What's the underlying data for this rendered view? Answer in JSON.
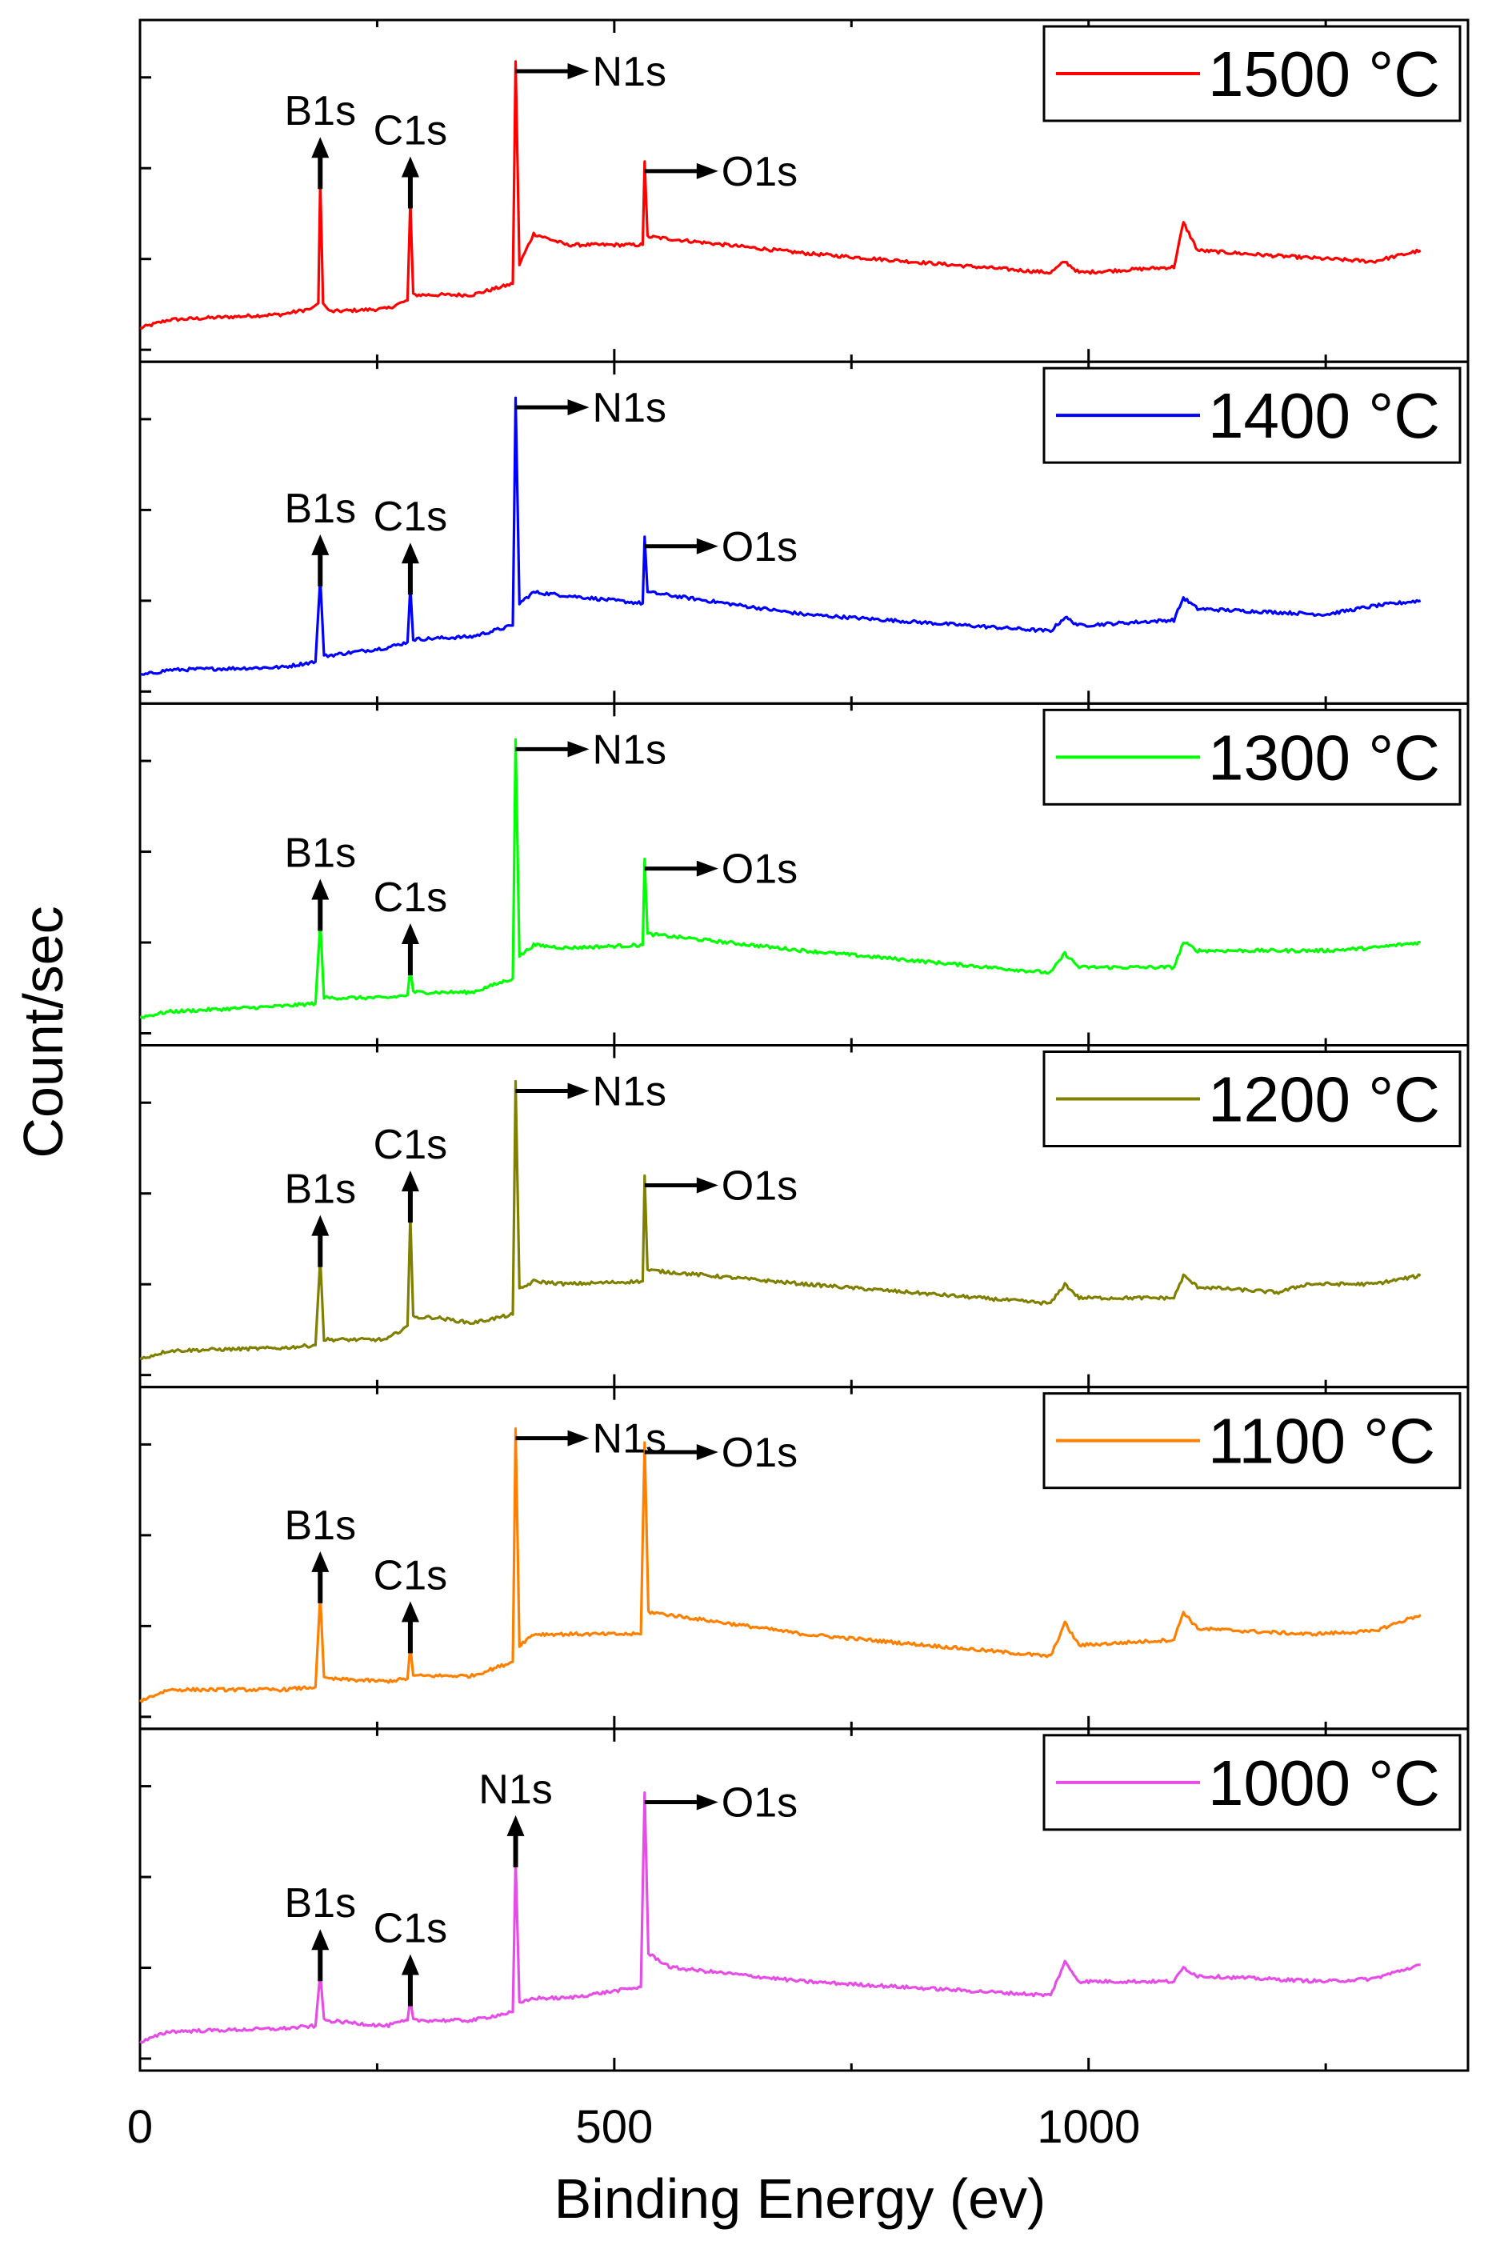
{
  "chart_data": {
    "type": "line",
    "layout": "stacked-panels",
    "xlabel": "Binding Energy (ev)",
    "ylabel": "Count/sec",
    "xlim": [
      0,
      1400
    ],
    "xticks": [
      0,
      500,
      1000
    ],
    "xtick_labels": [
      "0",
      "500",
      "1000"
    ],
    "y_tick_labels_shown": false,
    "legend_position": "top-right",
    "grid": false,
    "peak_labels": [
      "B1s",
      "C1s",
      "N1s",
      "O1s"
    ],
    "panels": [
      {
        "name": "1500 °C",
        "color": "#ff0000",
        "points": [
          [
            0,
            0.02
          ],
          [
            30,
            0.05
          ],
          [
            150,
            0.07
          ],
          [
            180,
            0.09
          ],
          [
            188,
            0.11
          ],
          [
            190,
            0.55
          ],
          [
            193,
            0.11
          ],
          [
            200,
            0.08
          ],
          [
            260,
            0.09
          ],
          [
            282,
            0.12
          ],
          [
            285,
            0.48
          ],
          [
            288,
            0.14
          ],
          [
            350,
            0.14
          ],
          [
            393,
            0.18
          ],
          [
            396,
            0.98
          ],
          [
            400,
            0.25
          ],
          [
            415,
            0.36
          ],
          [
            450,
            0.32
          ],
          [
            530,
            0.32
          ],
          [
            532,
            0.62
          ],
          [
            535,
            0.35
          ],
          [
            700,
            0.29
          ],
          [
            960,
            0.22
          ],
          [
            975,
            0.26
          ],
          [
            990,
            0.22
          ],
          [
            1090,
            0.24
          ],
          [
            1100,
            0.4
          ],
          [
            1115,
            0.3
          ],
          [
            1200,
            0.28
          ],
          [
            1300,
            0.26
          ],
          [
            1350,
            0.3
          ]
        ],
        "peaks": [
          {
            "label": "B1s",
            "x": 190
          },
          {
            "label": "C1s",
            "x": 285
          },
          {
            "label": "N1s",
            "x": 396
          },
          {
            "label": "O1s",
            "x": 532
          }
        ]
      },
      {
        "name": "1400 °C",
        "color": "#0000ff",
        "points": [
          [
            0,
            0.0
          ],
          [
            30,
            0.02
          ],
          [
            150,
            0.03
          ],
          [
            185,
            0.05
          ],
          [
            190,
            0.35
          ],
          [
            194,
            0.07
          ],
          [
            260,
            0.1
          ],
          [
            282,
            0.12
          ],
          [
            285,
            0.32
          ],
          [
            288,
            0.13
          ],
          [
            350,
            0.14
          ],
          [
            393,
            0.18
          ],
          [
            396,
            1.0
          ],
          [
            400,
            0.26
          ],
          [
            415,
            0.3
          ],
          [
            500,
            0.27
          ],
          [
            530,
            0.26
          ],
          [
            532,
            0.5
          ],
          [
            535,
            0.3
          ],
          [
            700,
            0.22
          ],
          [
            960,
            0.16
          ],
          [
            975,
            0.21
          ],
          [
            990,
            0.18
          ],
          [
            1090,
            0.2
          ],
          [
            1100,
            0.28
          ],
          [
            1115,
            0.24
          ],
          [
            1250,
            0.22
          ],
          [
            1300,
            0.25
          ],
          [
            1350,
            0.27
          ]
        ],
        "peaks": [
          {
            "label": "B1s",
            "x": 190
          },
          {
            "label": "C1s",
            "x": 285
          },
          {
            "label": "N1s",
            "x": 396
          },
          {
            "label": "O1s",
            "x": 532
          }
        ]
      },
      {
        "name": "1300 °C",
        "color": "#00ff00",
        "points": [
          [
            0,
            0.0
          ],
          [
            30,
            0.02
          ],
          [
            150,
            0.04
          ],
          [
            185,
            0.05
          ],
          [
            190,
            0.34
          ],
          [
            194,
            0.07
          ],
          [
            260,
            0.07
          ],
          [
            282,
            0.08
          ],
          [
            285,
            0.18
          ],
          [
            288,
            0.09
          ],
          [
            350,
            0.09
          ],
          [
            393,
            0.14
          ],
          [
            396,
            1.0
          ],
          [
            400,
            0.22
          ],
          [
            415,
            0.26
          ],
          [
            450,
            0.25
          ],
          [
            530,
            0.26
          ],
          [
            532,
            0.57
          ],
          [
            535,
            0.3
          ],
          [
            700,
            0.24
          ],
          [
            960,
            0.16
          ],
          [
            975,
            0.23
          ],
          [
            990,
            0.18
          ],
          [
            1090,
            0.18
          ],
          [
            1100,
            0.27
          ],
          [
            1115,
            0.24
          ],
          [
            1250,
            0.24
          ],
          [
            1300,
            0.25
          ],
          [
            1350,
            0.27
          ]
        ],
        "peaks": [
          {
            "label": "B1s",
            "x": 190
          },
          {
            "label": "C1s",
            "x": 285
          },
          {
            "label": "N1s",
            "x": 396
          },
          {
            "label": "O1s",
            "x": 532
          }
        ]
      },
      {
        "name": "1200 °C",
        "color": "#808000",
        "points": [
          [
            0,
            0.0
          ],
          [
            30,
            0.03
          ],
          [
            150,
            0.04
          ],
          [
            185,
            0.05
          ],
          [
            190,
            0.36
          ],
          [
            194,
            0.07
          ],
          [
            260,
            0.07
          ],
          [
            282,
            0.12
          ],
          [
            285,
            0.52
          ],
          [
            288,
            0.15
          ],
          [
            310,
            0.15
          ],
          [
            350,
            0.13
          ],
          [
            393,
            0.16
          ],
          [
            396,
            1.0
          ],
          [
            400,
            0.25
          ],
          [
            415,
            0.28
          ],
          [
            450,
            0.27
          ],
          [
            530,
            0.28
          ],
          [
            532,
            0.66
          ],
          [
            535,
            0.32
          ],
          [
            700,
            0.27
          ],
          [
            960,
            0.2
          ],
          [
            975,
            0.27
          ],
          [
            990,
            0.22
          ],
          [
            1090,
            0.22
          ],
          [
            1100,
            0.3
          ],
          [
            1115,
            0.26
          ],
          [
            1200,
            0.24
          ],
          [
            1230,
            0.27
          ],
          [
            1300,
            0.27
          ],
          [
            1350,
            0.3
          ]
        ],
        "peaks": [
          {
            "label": "B1s",
            "x": 190
          },
          {
            "label": "C1s",
            "x": 285
          },
          {
            "label": "N1s",
            "x": 396
          },
          {
            "label": "O1s",
            "x": 532
          }
        ]
      },
      {
        "name": "1100 °C",
        "color": "#ff8000",
        "points": [
          [
            0,
            0.0
          ],
          [
            30,
            0.04
          ],
          [
            150,
            0.04
          ],
          [
            185,
            0.05
          ],
          [
            190,
            0.38
          ],
          [
            194,
            0.08
          ],
          [
            260,
            0.07
          ],
          [
            282,
            0.08
          ],
          [
            285,
            0.2
          ],
          [
            288,
            0.09
          ],
          [
            350,
            0.09
          ],
          [
            393,
            0.14
          ],
          [
            396,
            0.98
          ],
          [
            400,
            0.2
          ],
          [
            415,
            0.24
          ],
          [
            450,
            0.24
          ],
          [
            528,
            0.24
          ],
          [
            532,
            0.93
          ],
          [
            536,
            0.32
          ],
          [
            700,
            0.24
          ],
          [
            960,
            0.16
          ],
          [
            975,
            0.28
          ],
          [
            990,
            0.2
          ],
          [
            1090,
            0.22
          ],
          [
            1100,
            0.32
          ],
          [
            1115,
            0.26
          ],
          [
            1230,
            0.24
          ],
          [
            1300,
            0.25
          ],
          [
            1350,
            0.31
          ]
        ],
        "peaks": [
          {
            "label": "B1s",
            "x": 190
          },
          {
            "label": "C1s",
            "x": 285
          },
          {
            "label": "N1s",
            "x": 396
          },
          {
            "label": "O1s",
            "x": 532
          }
        ]
      },
      {
        "name": "1000 °C",
        "color": "#e64de6",
        "points": [
          [
            0,
            0.0
          ],
          [
            30,
            0.04
          ],
          [
            150,
            0.05
          ],
          [
            185,
            0.06
          ],
          [
            190,
            0.25
          ],
          [
            194,
            0.08
          ],
          [
            260,
            0.06
          ],
          [
            282,
            0.08
          ],
          [
            285,
            0.16
          ],
          [
            288,
            0.08
          ],
          [
            350,
            0.08
          ],
          [
            393,
            0.11
          ],
          [
            396,
            0.66
          ],
          [
            400,
            0.14
          ],
          [
            415,
            0.16
          ],
          [
            450,
            0.16
          ],
          [
            528,
            0.2
          ],
          [
            532,
            0.9
          ],
          [
            536,
            0.32
          ],
          [
            560,
            0.27
          ],
          [
            700,
            0.22
          ],
          [
            960,
            0.17
          ],
          [
            975,
            0.29
          ],
          [
            990,
            0.22
          ],
          [
            1090,
            0.22
          ],
          [
            1100,
            0.27
          ],
          [
            1115,
            0.24
          ],
          [
            1250,
            0.22
          ],
          [
            1300,
            0.23
          ],
          [
            1350,
            0.28
          ]
        ],
        "peaks": [
          {
            "label": "B1s",
            "x": 190
          },
          {
            "label": "C1s",
            "x": 285
          },
          {
            "label": "N1s",
            "x": 396
          },
          {
            "label": "O1s",
            "x": 532
          }
        ]
      }
    ]
  }
}
